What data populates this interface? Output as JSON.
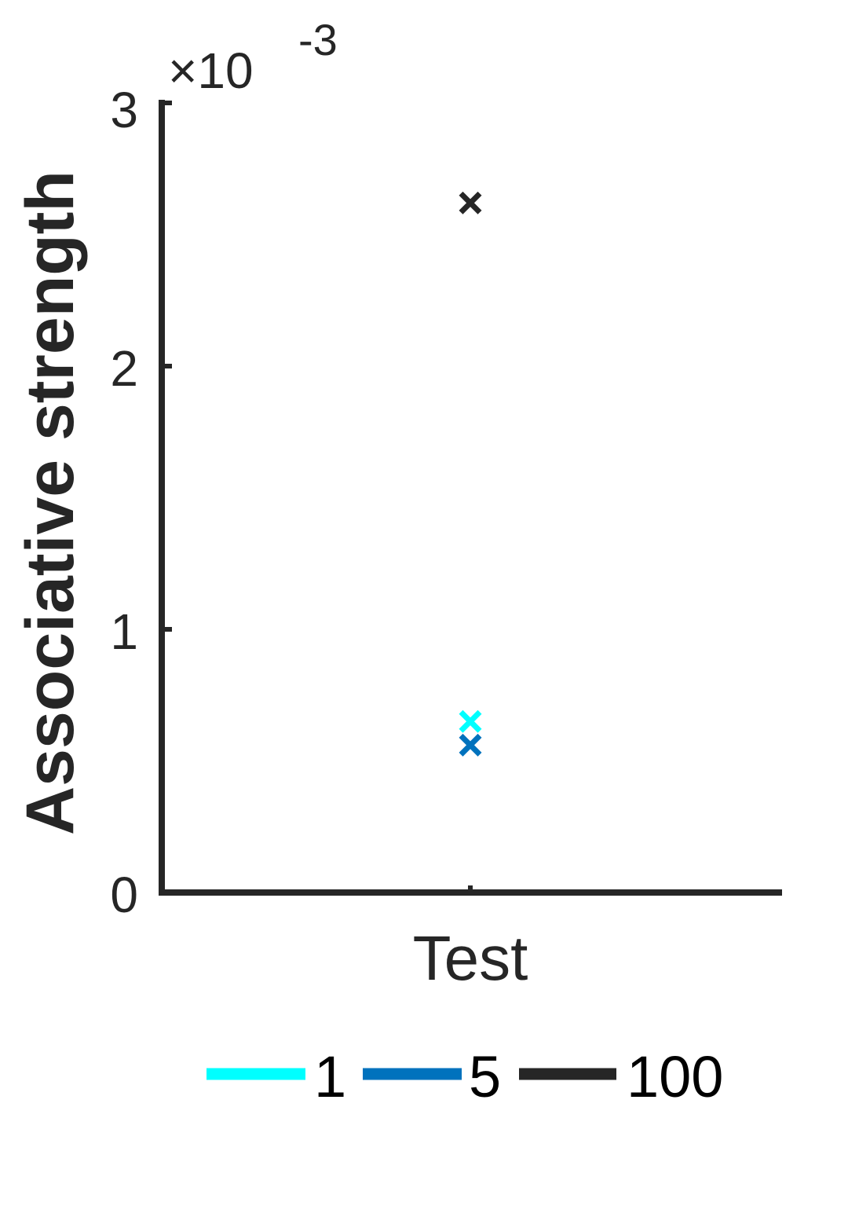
{
  "chart_data": {
    "type": "scatter",
    "title": "",
    "xlabel": "",
    "ylabel": "Associative strength",
    "categories": [
      "Test"
    ],
    "exponent_multiplier": "×10",
    "exponent_power": "-3",
    "ylim": [
      0,
      3
    ],
    "yticks": [
      "0",
      "1",
      "2",
      "3"
    ],
    "grid": false,
    "legend_position": "bottom",
    "marker": "x",
    "series": [
      {
        "name": "1",
        "color": "#00FFFF",
        "values": [
          0.65
        ]
      },
      {
        "name": "5",
        "color": "#0072BD",
        "values": [
          0.56
        ]
      },
      {
        "name": "100",
        "color": "#262626",
        "values": [
          2.62
        ]
      }
    ]
  }
}
